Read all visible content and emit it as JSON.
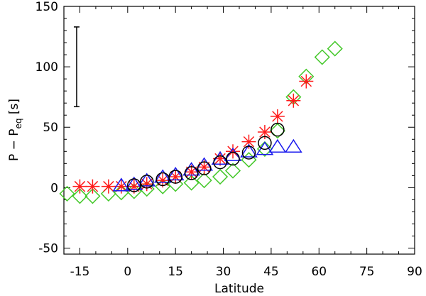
{
  "chart_data": {
    "type": "scatter",
    "title": "",
    "xlabel": "Latitude",
    "ylabel_main": "P − P",
    "ylabel_sub": "eq",
    "ylabel_unit": " [s]",
    "xlim": [
      -20,
      90
    ],
    "ylim": [
      -55,
      150
    ],
    "xticks": [
      -15,
      0,
      15,
      30,
      45,
      60,
      75,
      90
    ],
    "yticks": [
      -50,
      0,
      50,
      100,
      150
    ],
    "error_bar": {
      "x": -16,
      "y_low": 67,
      "y_high": 133
    },
    "series": [
      {
        "name": "green diamonds",
        "marker": "diamond",
        "color": "#44c82a",
        "points": [
          [
            -19,
            -5
          ],
          [
            -15,
            -7
          ],
          [
            -11,
            -7
          ],
          [
            -6,
            -5
          ],
          [
            -2,
            -4
          ],
          [
            2,
            -3
          ],
          [
            6,
            -1
          ],
          [
            11,
            1
          ],
          [
            15,
            3
          ],
          [
            20,
            4
          ],
          [
            24,
            6
          ],
          [
            29,
            9
          ],
          [
            33,
            14
          ],
          [
            38,
            23
          ],
          [
            43,
            32
          ],
          [
            47,
            47
          ],
          [
            52,
            75
          ],
          [
            56,
            92
          ],
          [
            61,
            108
          ],
          [
            65,
            115
          ]
        ]
      },
      {
        "name": "red asterisks",
        "marker": "asterisk",
        "color": "#ff1a1a",
        "points": [
          [
            -15,
            1
          ],
          [
            -11,
            1
          ],
          [
            -6,
            1
          ],
          [
            -2,
            1
          ],
          [
            2,
            1
          ],
          [
            6,
            3
          ],
          [
            11,
            6
          ],
          [
            15,
            9
          ],
          [
            20,
            13
          ],
          [
            24,
            17
          ],
          [
            29,
            24
          ],
          [
            33,
            30
          ],
          [
            38,
            38
          ],
          [
            43,
            46
          ],
          [
            47,
            59
          ],
          [
            52,
            72
          ],
          [
            56,
            88
          ]
        ]
      },
      {
        "name": "blue triangles",
        "marker": "triangle",
        "color": "#1a1aee",
        "points": [
          [
            -2,
            1
          ],
          [
            2,
            2
          ],
          [
            6,
            5
          ],
          [
            11,
            8
          ],
          [
            15,
            10
          ],
          [
            20,
            14
          ],
          [
            24,
            18
          ],
          [
            29,
            23
          ],
          [
            33,
            26
          ],
          [
            38,
            29
          ],
          [
            43,
            31
          ],
          [
            47,
            33
          ],
          [
            52,
            33
          ]
        ]
      },
      {
        "name": "black circles",
        "marker": "circle",
        "color": "#000000",
        "points": [
          [
            2,
            2
          ],
          [
            6,
            5
          ],
          [
            11,
            7
          ],
          [
            15,
            9
          ],
          [
            20,
            12
          ],
          [
            24,
            16
          ],
          [
            29,
            21
          ],
          [
            33,
            24
          ],
          [
            38,
            29
          ],
          [
            43,
            37
          ],
          [
            47,
            48
          ]
        ]
      }
    ]
  }
}
